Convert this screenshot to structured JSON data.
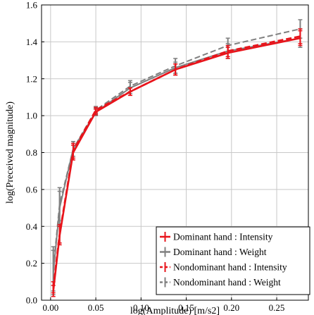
{
  "chart_data": {
    "type": "line",
    "title": "",
    "xlabel": "log(Amplitude) [m/s2]",
    "ylabel": "log(Preceived magnitude)",
    "xlim": [
      -0.01,
      0.285
    ],
    "ylim": [
      0.0,
      1.6
    ],
    "xticks": [
      0.0,
      0.05,
      0.1,
      0.15,
      0.2,
      0.25
    ],
    "xtick_labels": [
      "0.00",
      "0.05",
      "0.10",
      "0.15",
      "0.20",
      "0.25"
    ],
    "yticks": [
      0.0,
      0.2,
      0.4,
      0.6,
      0.8,
      1.0,
      1.2,
      1.4,
      1.6
    ],
    "ytick_labels": [
      "0.0",
      "0.2",
      "0.4",
      "0.6",
      "0.8",
      "1.0",
      "1.2",
      "1.4",
      "1.6"
    ],
    "grid": true,
    "legend_position": "lower-right",
    "x": [
      0.003,
      0.01,
      0.025,
      0.05,
      0.088,
      0.138,
      0.196,
      0.276
    ],
    "series": [
      {
        "name": "Dominant hand : Intensity",
        "color": "#e8141b",
        "dashed": false,
        "values": [
          0.05,
          0.35,
          0.8,
          1.02,
          1.13,
          1.25,
          1.34,
          1.42
        ],
        "errors": [
          0.03,
          0.05,
          0.04,
          0.015,
          0.02,
          0.03,
          0.03,
          0.04
        ]
      },
      {
        "name": "Dominant hand : Weight",
        "color": "#808080",
        "dashed": false,
        "values": [
          0.15,
          0.5,
          0.82,
          1.02,
          1.15,
          1.26,
          1.35,
          1.42
        ],
        "errors": [
          0.12,
          0.09,
          0.04,
          0.02,
          0.03,
          0.03,
          0.04,
          0.05
        ]
      },
      {
        "name": "Nondominant hand : Intensity",
        "color": "#e8141b",
        "dashed": true,
        "values": [
          0.07,
          0.36,
          0.81,
          1.03,
          1.13,
          1.25,
          1.35,
          1.43
        ],
        "errors": [
          0.03,
          0.05,
          0.04,
          0.015,
          0.02,
          0.03,
          0.03,
          0.04
        ]
      },
      {
        "name": "Nondominant hand : Weight",
        "color": "#808080",
        "dashed": true,
        "values": [
          0.17,
          0.52,
          0.82,
          1.03,
          1.16,
          1.27,
          1.38,
          1.47
        ],
        "errors": [
          0.12,
          0.09,
          0.04,
          0.02,
          0.03,
          0.04,
          0.04,
          0.05
        ]
      }
    ]
  }
}
